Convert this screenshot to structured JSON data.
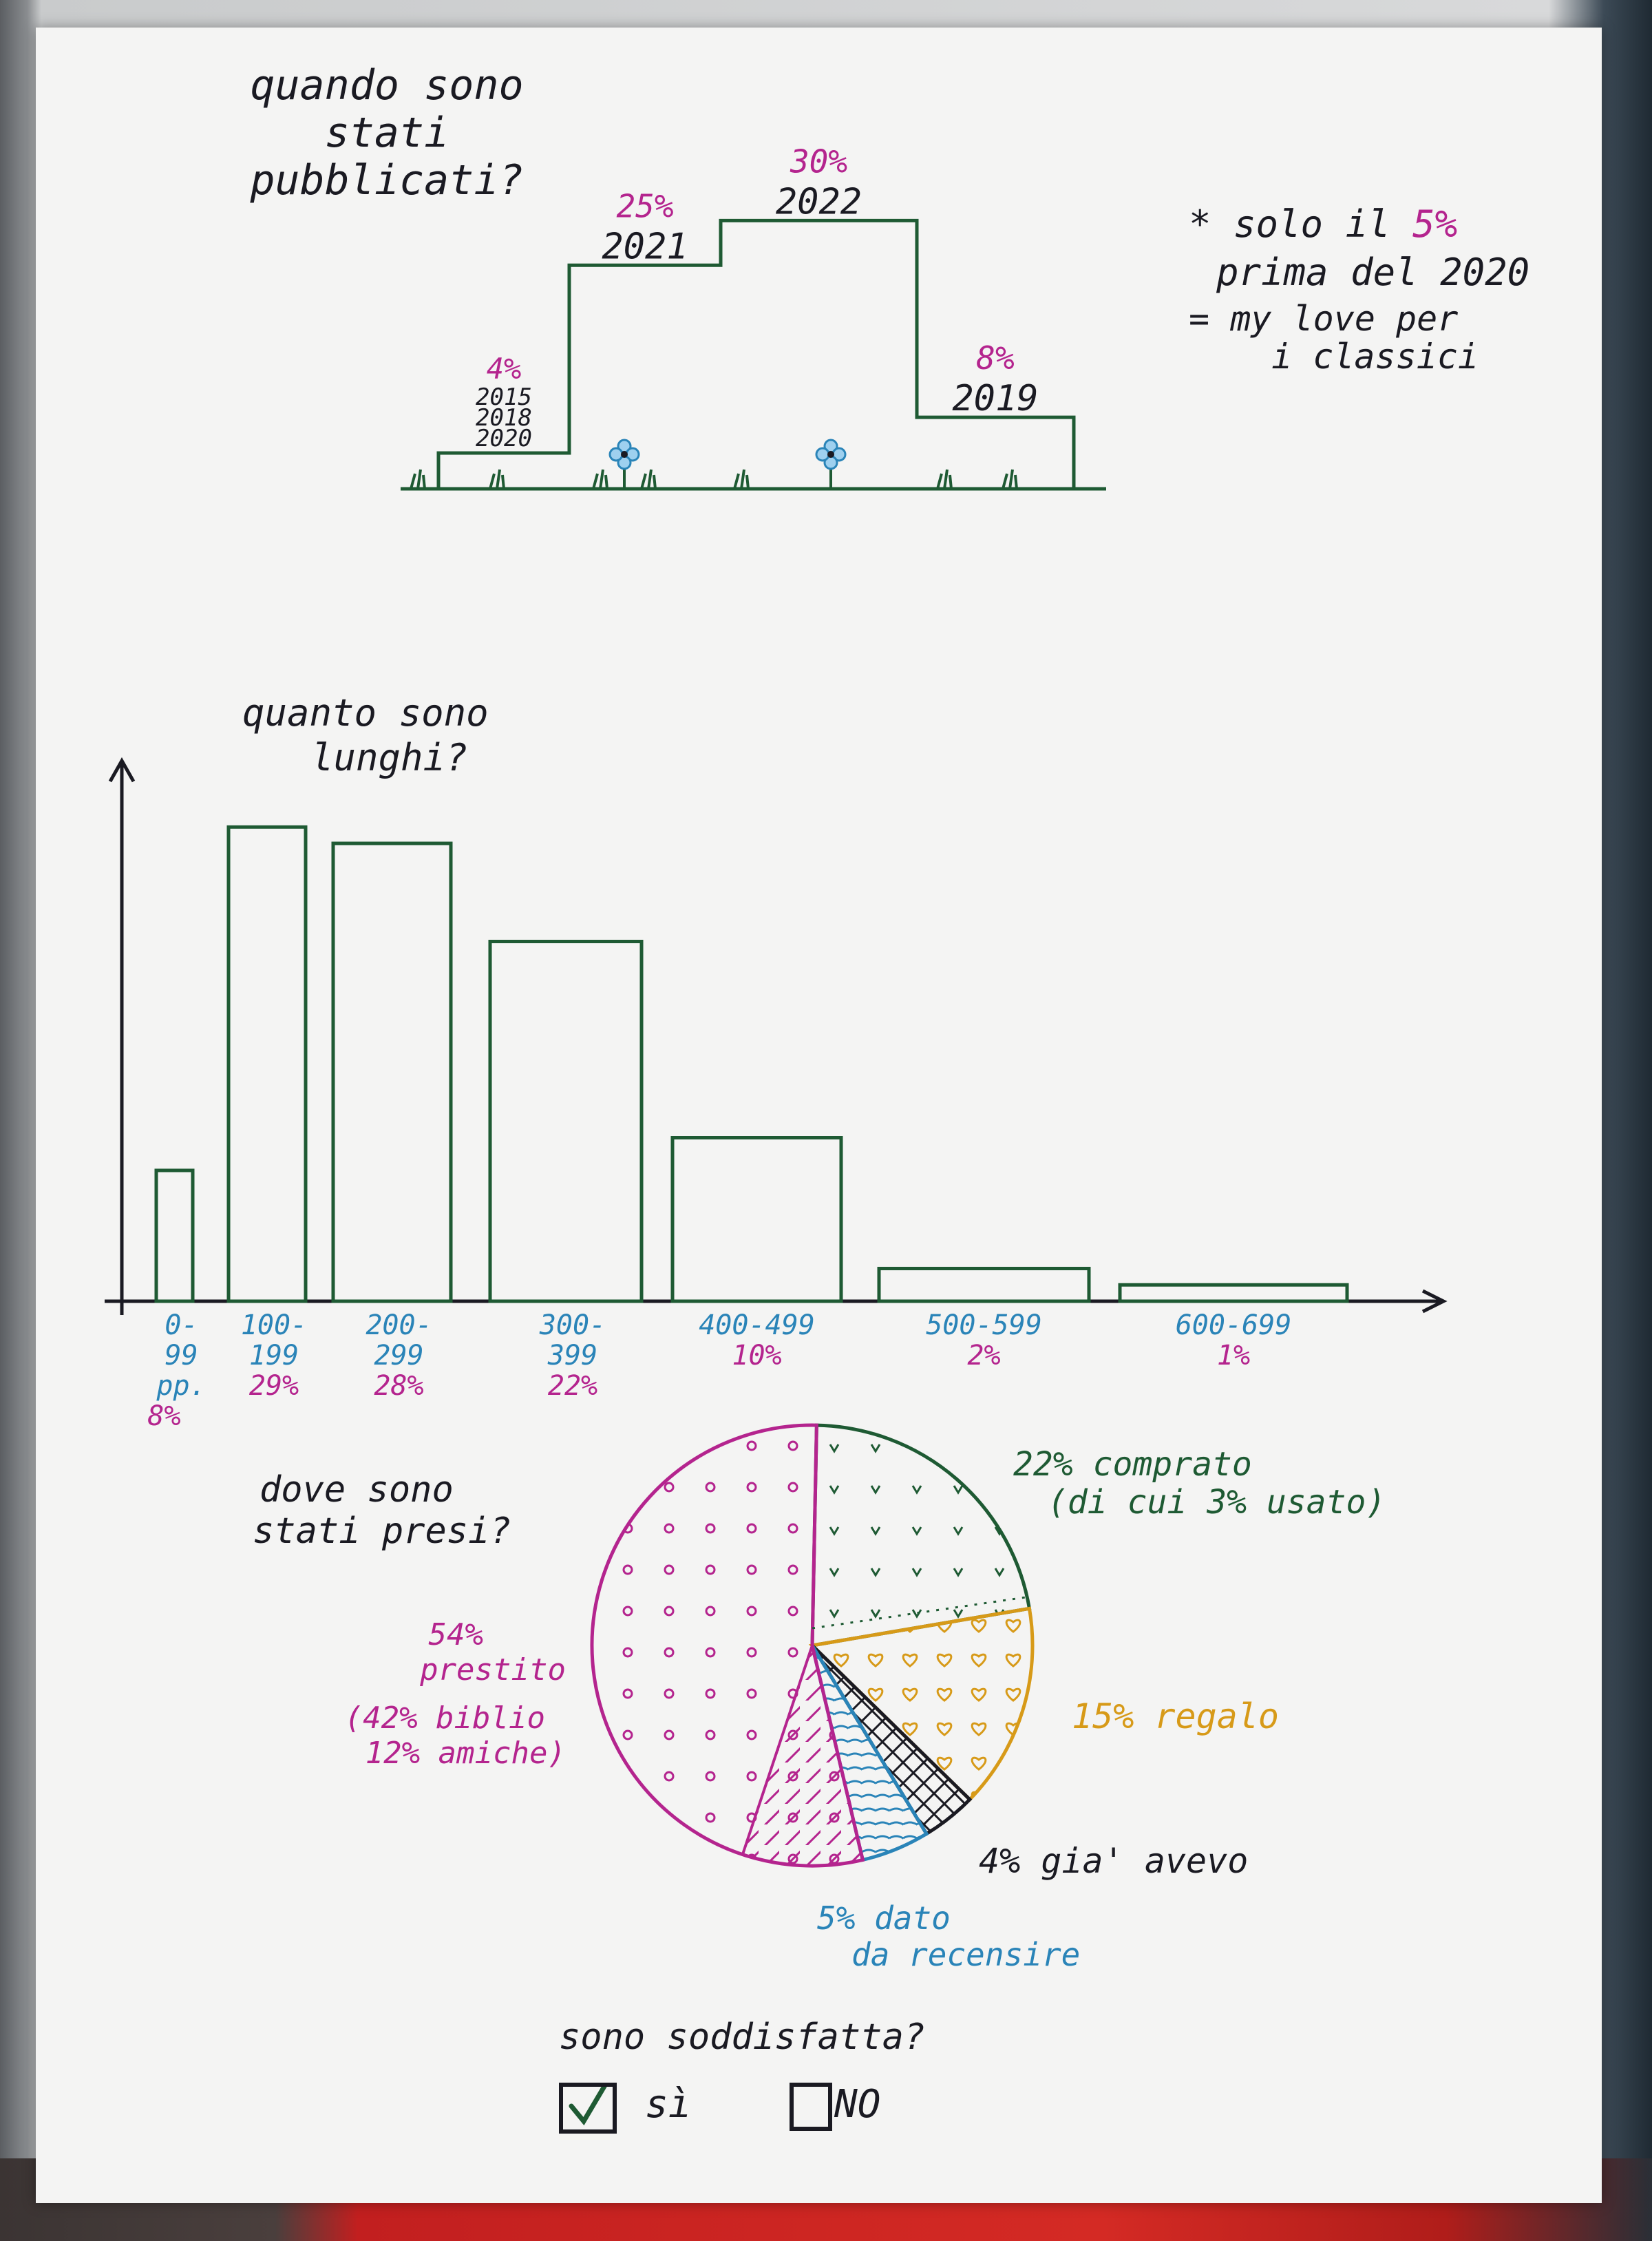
{
  "colors": {
    "ink": "#1a1a22",
    "green": "#1e5a33",
    "magenta": "#b4248e",
    "blue": "#2a84b8",
    "gold": "#d79a18"
  },
  "chart_data": [
    {
      "type": "area",
      "title": "quando sono stati pubblicati?",
      "note": {
        "line1_prefix": "* solo il",
        "line1_value": "5%",
        "line2": "prima del 2020",
        "line3": "= my love per",
        "line4": "i classici"
      },
      "categories": [
        "2015\n2018\n2020",
        "2021",
        "2022",
        "2019"
      ],
      "labels": [
        [
          "2015",
          "2018",
          "2020"
        ],
        [
          "2021"
        ],
        [
          "2022"
        ],
        [
          "2019"
        ]
      ],
      "values": [
        4,
        25,
        30,
        8
      ],
      "value_labels": [
        "4%",
        "25%",
        "30%",
        "8%"
      ],
      "ylim": [
        0,
        34
      ]
    },
    {
      "type": "bar",
      "title": "quanto sono lunghi?",
      "title_lines": [
        "quanto sono",
        "lunghi?"
      ],
      "categories": [
        "0-99 pp.",
        "100-199",
        "200-299",
        "300-399",
        "400-499",
        "500-599",
        "600-699"
      ],
      "category_lines": [
        [
          "0-",
          "99",
          "pp."
        ],
        [
          "100-",
          "199"
        ],
        [
          "200-",
          "299"
        ],
        [
          "300-",
          "399"
        ],
        [
          "400-499"
        ],
        [
          "500-599"
        ],
        [
          "600-699"
        ]
      ],
      "values": [
        8,
        29,
        28,
        22,
        10,
        2,
        1
      ],
      "value_labels": [
        "8%",
        "29%",
        "28%",
        "22%",
        "10%",
        "2%",
        "1%"
      ],
      "ylim": [
        0,
        32
      ]
    },
    {
      "type": "pie",
      "title": "dove sono stati presi?",
      "title_lines": [
        "dove sono",
        "stati presi?"
      ],
      "slices": [
        {
          "label": "comprato",
          "value": 22,
          "color": "#1e5a33",
          "text_lines": [
            "22% comprato",
            "(di cui 3% usato)"
          ]
        },
        {
          "label": "regalo",
          "value": 15,
          "color": "#d79a18",
          "text_lines": [
            "15% regalo"
          ]
        },
        {
          "label": "già avevo",
          "value": 4,
          "color": "#1a1a22",
          "text_lines": [
            "4% gia' avevo"
          ]
        },
        {
          "label": "dato da recensire",
          "value": 5,
          "color": "#2a84b8",
          "text_lines": [
            "5% dato",
            "da recensire"
          ]
        },
        {
          "label": "prestito",
          "value": 54,
          "color": "#b4248e",
          "text_lines": [
            "54%",
            "prestito",
            "(42% biblio",
            "12% amiche)"
          ]
        }
      ]
    }
  ],
  "footer": {
    "question": "sono soddisfatta?",
    "yes": "sì",
    "no": "no",
    "yes_checked": true
  }
}
